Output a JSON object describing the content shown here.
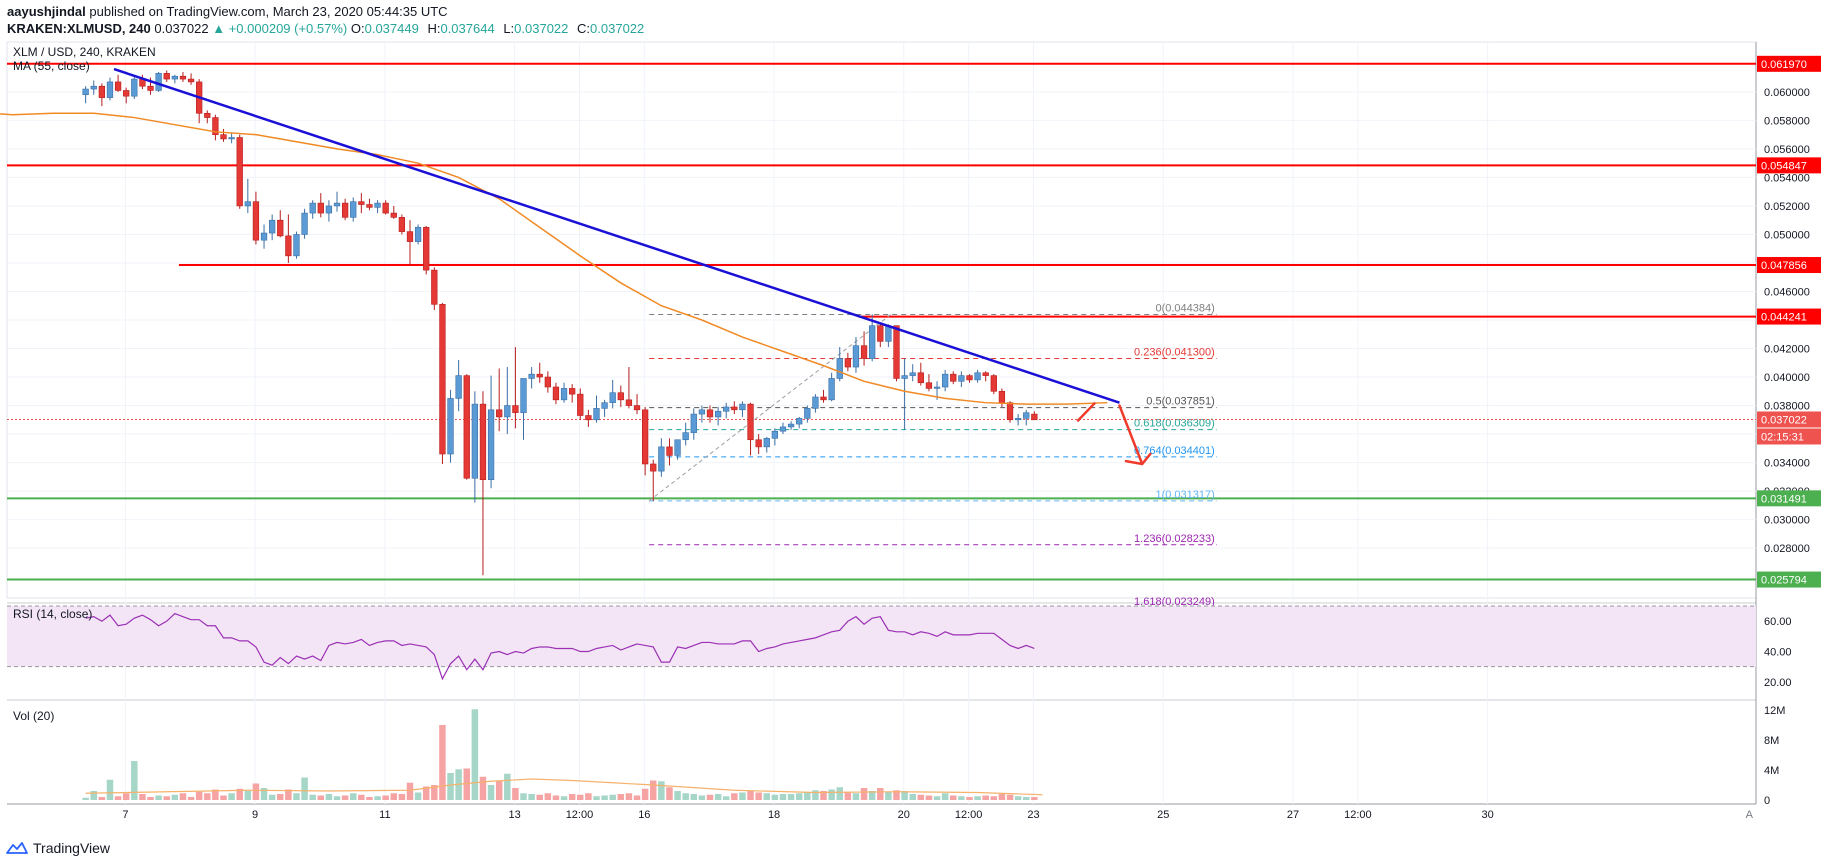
{
  "header": {
    "author": "aayushjindal",
    "published_text": "published on TradingView.com, March 23, 2020 05:44:35 UTC",
    "symbol": "KRAKEN:XLMUSD, 240",
    "last": "0.037022",
    "change": "▲ +0.000209 (+0.57%)",
    "o_label": "O:",
    "o": "0.037449",
    "h_label": "H:",
    "h": "0.037644",
    "l_label": "L:",
    "l": "0.037022",
    "c_label": "C:",
    "c": "0.037022"
  },
  "chart_data": {
    "type": "candlestick",
    "title": "XLM / USD, 240, KRAKEN",
    "ma_label": "MA (55, close)",
    "ylim": [
      0.0245,
      0.0635
    ],
    "y_ticks": [
      0.028,
      0.03,
      0.032,
      0.034,
      0.036,
      0.038,
      0.04,
      0.042,
      0.044,
      0.046,
      0.048,
      0.05,
      0.052,
      0.054,
      0.056,
      0.058,
      0.06
    ],
    "y_tick_labels": [
      "0.028000",
      "0.030000",
      "0.032000",
      "0.034000",
      "0.036000",
      "0.038000",
      "0.040000",
      "0.042000",
      "0.044000",
      "0.046000",
      "0.048000",
      "0.050000",
      "0.052000",
      "0.054000",
      "0.056000",
      "0.058000",
      "0.060000"
    ],
    "x_ticks": [
      {
        "label": "7",
        "t": 4.9
      },
      {
        "label": "9",
        "t": 20.9
      },
      {
        "label": "11",
        "t": 36.9
      },
      {
        "label": "13",
        "t": 52.9
      },
      {
        "label": "12:00",
        "t": 60.9
      },
      {
        "label": "16",
        "t": 68.9
      },
      {
        "label": "18",
        "t": 84.9
      },
      {
        "label": "20",
        "t": 100.9
      },
      {
        "label": "12:00",
        "t": 108.9
      },
      {
        "label": "23",
        "t": 116.9
      },
      {
        "label": "25",
        "t": 132.9
      },
      {
        "label": "27",
        "t": 148.9
      },
      {
        "label": "12:00",
        "t": 156.9
      },
      {
        "label": "30",
        "t": 172.9
      }
    ],
    "xlim": [
      -9.7,
      206
    ],
    "axis_corner": "A",
    "candles": [
      [
        0.0598,
        0.0604,
        0.0592,
        0.0602
      ],
      [
        0.0602,
        0.0608,
        0.0598,
        0.0604
      ],
      [
        0.0604,
        0.0606,
        0.059,
        0.0596
      ],
      [
        0.0596,
        0.061,
        0.0594,
        0.0607
      ],
      [
        0.0607,
        0.0612,
        0.06,
        0.0601
      ],
      [
        0.0601,
        0.0603,
        0.0592,
        0.0597
      ],
      [
        0.0597,
        0.0612,
        0.0595,
        0.0609
      ],
      [
        0.0609,
        0.0612,
        0.0602,
        0.0604
      ],
      [
        0.0604,
        0.061,
        0.0598,
        0.0601
      ],
      [
        0.0601,
        0.0614,
        0.06,
        0.0613
      ],
      [
        0.0613,
        0.0615,
        0.0607,
        0.0609
      ],
      [
        0.0609,
        0.0612,
        0.0606,
        0.0611
      ],
      [
        0.0611,
        0.0614,
        0.0607,
        0.0609
      ],
      [
        0.0609,
        0.0613,
        0.0605,
        0.0607
      ],
      [
        0.0607,
        0.0609,
        0.0578,
        0.0585
      ],
      [
        0.0585,
        0.0587,
        0.0578,
        0.0582
      ],
      [
        0.0582,
        0.0584,
        0.0566,
        0.057
      ],
      [
        0.057,
        0.0574,
        0.0565,
        0.0567
      ],
      [
        0.0567,
        0.0571,
        0.0564,
        0.0568
      ],
      [
        0.0568,
        0.057,
        0.0518,
        0.052
      ],
      [
        0.052,
        0.0539,
        0.0515,
        0.0523
      ],
      [
        0.0523,
        0.053,
        0.0493,
        0.0496
      ],
      [
        0.0496,
        0.0507,
        0.049,
        0.0501
      ],
      [
        0.0501,
        0.0514,
        0.0496,
        0.051
      ],
      [
        0.051,
        0.0517,
        0.0498,
        0.0499
      ],
      [
        0.0499,
        0.0514,
        0.048,
        0.0485
      ],
      [
        0.0485,
        0.0502,
        0.0483,
        0.05
      ],
      [
        0.05,
        0.0518,
        0.0497,
        0.0515
      ],
      [
        0.0515,
        0.0524,
        0.0511,
        0.0522
      ],
      [
        0.0522,
        0.0529,
        0.0512,
        0.0515
      ],
      [
        0.0515,
        0.0524,
        0.0509,
        0.052
      ],
      [
        0.052,
        0.053,
        0.0516,
        0.0522
      ],
      [
        0.0522,
        0.0525,
        0.051,
        0.0512
      ],
      [
        0.0512,
        0.0526,
        0.0509,
        0.0523
      ],
      [
        0.0523,
        0.0529,
        0.0515,
        0.0521
      ],
      [
        0.0521,
        0.0525,
        0.0517,
        0.0519
      ],
      [
        0.0519,
        0.0524,
        0.0515,
        0.0522
      ],
      [
        0.0522,
        0.0524,
        0.0514,
        0.0515
      ],
      [
        0.0515,
        0.052,
        0.0511,
        0.0512
      ],
      [
        0.0512,
        0.0514,
        0.05,
        0.0502
      ],
      [
        0.0502,
        0.051,
        0.0478,
        0.0495
      ],
      [
        0.0495,
        0.0507,
        0.0493,
        0.0505
      ],
      [
        0.0505,
        0.0506,
        0.0472,
        0.0475
      ],
      [
        0.0475,
        0.0477,
        0.0447,
        0.0451
      ],
      [
        0.0451,
        0.0452,
        0.0339,
        0.0346
      ],
      [
        0.0346,
        0.0391,
        0.034,
        0.0385
      ],
      [
        0.0385,
        0.0412,
        0.0376,
        0.0401
      ],
      [
        0.0401,
        0.0402,
        0.0328,
        0.0329
      ],
      [
        0.0329,
        0.039,
        0.0312,
        0.0381
      ],
      [
        0.0381,
        0.039,
        0.0261,
        0.0328
      ],
      [
        0.0328,
        0.0401,
        0.0322,
        0.0377
      ],
      [
        0.0377,
        0.0406,
        0.0362,
        0.0372
      ],
      [
        0.0372,
        0.0407,
        0.036,
        0.038
      ],
      [
        0.038,
        0.0421,
        0.0364,
        0.0375
      ],
      [
        0.0375,
        0.0398,
        0.0356,
        0.0399
      ],
      [
        0.0399,
        0.0407,
        0.0392,
        0.0402
      ],
      [
        0.0402,
        0.041,
        0.0396,
        0.04
      ],
      [
        0.04,
        0.0404,
        0.0389,
        0.0393
      ],
      [
        0.0393,
        0.0396,
        0.0381,
        0.0384
      ],
      [
        0.0384,
        0.0396,
        0.0382,
        0.0392
      ],
      [
        0.0392,
        0.0395,
        0.0382,
        0.0388
      ],
      [
        0.0388,
        0.0392,
        0.037,
        0.0373
      ],
      [
        0.0373,
        0.0377,
        0.0365,
        0.037
      ],
      [
        0.037,
        0.0387,
        0.0368,
        0.0378
      ],
      [
        0.0378,
        0.0384,
        0.0372,
        0.0382
      ],
      [
        0.0382,
        0.0398,
        0.0378,
        0.0389
      ],
      [
        0.0389,
        0.0394,
        0.0379,
        0.0384
      ],
      [
        0.0384,
        0.0407,
        0.0378,
        0.038
      ],
      [
        0.038,
        0.0388,
        0.0374,
        0.0377
      ],
      [
        0.0377,
        0.0379,
        0.0331,
        0.0339
      ],
      [
        0.0339,
        0.0342,
        0.0313,
        0.0334
      ],
      [
        0.0334,
        0.0357,
        0.033,
        0.0351
      ],
      [
        0.0351,
        0.0357,
        0.0338,
        0.0345
      ],
      [
        0.0345,
        0.0356,
        0.0342,
        0.0356
      ],
      [
        0.0356,
        0.0368,
        0.0352,
        0.0361
      ],
      [
        0.0361,
        0.0378,
        0.0356,
        0.0374
      ],
      [
        0.0374,
        0.038,
        0.0368,
        0.0377
      ],
      [
        0.0377,
        0.038,
        0.0368,
        0.0372
      ],
      [
        0.0372,
        0.0379,
        0.0366,
        0.0376
      ],
      [
        0.0376,
        0.0382,
        0.0371,
        0.0379
      ],
      [
        0.0379,
        0.0383,
        0.0374,
        0.0377
      ],
      [
        0.0377,
        0.0383,
        0.0372,
        0.0381
      ],
      [
        0.0381,
        0.0382,
        0.0345,
        0.0356
      ],
      [
        0.0356,
        0.036,
        0.0346,
        0.0351
      ],
      [
        0.0351,
        0.0358,
        0.0347,
        0.0357
      ],
      [
        0.0357,
        0.0364,
        0.0352,
        0.0362
      ],
      [
        0.0362,
        0.0368,
        0.036,
        0.0365
      ],
      [
        0.0365,
        0.0369,
        0.0363,
        0.0367
      ],
      [
        0.0367,
        0.0372,
        0.0364,
        0.0371
      ],
      [
        0.0371,
        0.038,
        0.0368,
        0.0378
      ],
      [
        0.0378,
        0.0388,
        0.0375,
        0.0386
      ],
      [
        0.0386,
        0.0391,
        0.0382,
        0.0384
      ],
      [
        0.0384,
        0.0403,
        0.0383,
        0.0399
      ],
      [
        0.0399,
        0.0421,
        0.0397,
        0.0413
      ],
      [
        0.0413,
        0.0417,
        0.0404,
        0.0407
      ],
      [
        0.0407,
        0.0428,
        0.0403,
        0.0422
      ],
      [
        0.0422,
        0.0432,
        0.0408,
        0.0413
      ],
      [
        0.0413,
        0.0444,
        0.0411,
        0.0436
      ],
      [
        0.0436,
        0.0437,
        0.0421,
        0.0425
      ],
      [
        0.0425,
        0.0437,
        0.0421,
        0.0436
      ],
      [
        0.0436,
        0.0436,
        0.0397,
        0.0399
      ],
      [
        0.0399,
        0.0413,
        0.0363,
        0.0401
      ],
      [
        0.0401,
        0.0409,
        0.0397,
        0.0403
      ],
      [
        0.0403,
        0.041,
        0.0394,
        0.0396
      ],
      [
        0.0396,
        0.0402,
        0.039,
        0.0392
      ],
      [
        0.0392,
        0.0397,
        0.0384,
        0.0393
      ],
      [
        0.0393,
        0.0405,
        0.039,
        0.0402
      ],
      [
        0.0402,
        0.0404,
        0.0395,
        0.0397
      ],
      [
        0.0397,
        0.0404,
        0.0393,
        0.0401
      ],
      [
        0.0401,
        0.0402,
        0.0396,
        0.0398
      ],
      [
        0.0398,
        0.0405,
        0.0396,
        0.0403
      ],
      [
        0.0403,
        0.0404,
        0.0397,
        0.0401
      ],
      [
        0.0401,
        0.0402,
        0.0388,
        0.039
      ],
      [
        0.039,
        0.0392,
        0.0379,
        0.0382
      ],
      [
        0.0382,
        0.0383,
        0.0368,
        0.037
      ],
      [
        0.037,
        0.0374,
        0.0366,
        0.0371
      ],
      [
        0.0371,
        0.0377,
        0.0366,
        0.0375
      ],
      [
        0.0374,
        0.0376,
        0.037,
        0.037
      ]
    ],
    "ma55": [
      [
        0,
        0.0586
      ],
      [
        5,
        0.0584
      ],
      [
        10,
        0.0585
      ],
      [
        15,
        0.0585
      ],
      [
        20,
        0.0582
      ],
      [
        25,
        0.0577
      ],
      [
        30,
        0.0572
      ],
      [
        35,
        0.057
      ],
      [
        40,
        0.0565
      ],
      [
        45,
        0.056
      ],
      [
        50,
        0.0556
      ],
      [
        55,
        0.055
      ],
      [
        60,
        0.054
      ],
      [
        65,
        0.0525
      ],
      [
        70,
        0.0505
      ],
      [
        75,
        0.0485
      ],
      [
        80,
        0.0466
      ],
      [
        85,
        0.045
      ],
      [
        90,
        0.044
      ],
      [
        95,
        0.0428
      ],
      [
        100,
        0.0418
      ],
      [
        105,
        0.0408
      ],
      [
        110,
        0.0397
      ],
      [
        115,
        0.039
      ],
      [
        120,
        0.0385
      ],
      [
        125,
        0.0382
      ],
      [
        130,
        0.0381
      ],
      [
        135,
        0.0381
      ],
      [
        140,
        0.0382
      ]
    ],
    "ma55_x_offset": -14,
    "horizontal_levels": [
      {
        "value": 0.06197,
        "label": "0.061970",
        "color": "#ff0000",
        "start_t": -9.7
      },
      {
        "value": 0.054847,
        "label": "0.054847",
        "color": "#ff0000",
        "start_t": -9.7
      },
      {
        "value": 0.047856,
        "label": "0.047856",
        "color": "#ff0000",
        "start_t": 11.5
      },
      {
        "value": 0.044241,
        "label": "0.044241",
        "color": "#ff0000",
        "start_t": 95.3
      },
      {
        "value": 0.031491,
        "label": "0.031491",
        "color": "#4caf50",
        "start_t": -9.7
      },
      {
        "value": 0.025794,
        "label": "0.025794",
        "color": "#4caf50",
        "start_t": -9.7
      }
    ],
    "last_price": {
      "value": 0.037022,
      "label": "0.037022",
      "countdown": "02:15:31",
      "color": "#ef5350"
    },
    "trendline": {
      "t1": 3.5,
      "v1": 0.0616,
      "t2": 127.5,
      "v2": 0.0382,
      "color": "#1a10d6"
    },
    "fibonacci": {
      "t_start": 69.5,
      "t_end": 139.5,
      "levels": [
        {
          "ratio": "0",
          "value": 0.044384,
          "label": "0(0.044384)",
          "color": "#808080"
        },
        {
          "ratio": "0.236",
          "value": 0.0413,
          "label": "0.236(0.041300)",
          "color": "#e53935"
        },
        {
          "ratio": "0.5",
          "value": 0.037851,
          "label": "0.5(0.037851)",
          "color": "#555555"
        },
        {
          "ratio": "0.618",
          "value": 0.036309,
          "label": "0.618(0.036309)",
          "color": "#26a69a"
        },
        {
          "ratio": "0.764",
          "value": 0.034401,
          "label": "0.764(0.034401)",
          "color": "#2196f3"
        },
        {
          "ratio": "1",
          "value": 0.031317,
          "label": "1(0.031317)",
          "color": "#64b5f6"
        },
        {
          "ratio": "1.236",
          "value": 0.028233,
          "label": "1.236(0.028233)",
          "color": "#9c27b0"
        }
      ],
      "partial_label": "1.618(0.023249)"
    },
    "rsi": {
      "label": "RSI (14, close)",
      "ylim": [
        10,
        72
      ],
      "band": [
        30,
        70
      ],
      "ticks": [
        20,
        40,
        60
      ],
      "tick_labels": [
        "20.00",
        "40.00",
        "60.00"
      ],
      "values": [
        62,
        63,
        60,
        64,
        57,
        58,
        62,
        64,
        61,
        57,
        60,
        65,
        63,
        61,
        61,
        57,
        57,
        49,
        49,
        47,
        47,
        43,
        33,
        31,
        36,
        32,
        37,
        35,
        37,
        34,
        44,
        46,
        45,
        46,
        48,
        44,
        46,
        47,
        47,
        44,
        45,
        44,
        43,
        38,
        22,
        32,
        37,
        28,
        35,
        28,
        39,
        40,
        38,
        40,
        39,
        42,
        43,
        43,
        42,
        42,
        42,
        40,
        40,
        42,
        43,
        44,
        41,
        43,
        45,
        44,
        43,
        33,
        33,
        43,
        42,
        44,
        46,
        46,
        45,
        45,
        45,
        47,
        47,
        40,
        42,
        43,
        45,
        46,
        47,
        48,
        49,
        51,
        53,
        54,
        60,
        63,
        58,
        62,
        63,
        54,
        53,
        53,
        51,
        53,
        52,
        50,
        53,
        51,
        51,
        51,
        52,
        52,
        52,
        48,
        44,
        42,
        44,
        42
      ]
    },
    "volume": {
      "label": "Vol (20)",
      "ylim": [
        0,
        12000000
      ],
      "ticks": [
        0,
        4000000,
        8000000,
        12000000
      ],
      "tick_labels": [
        "0",
        "4M",
        "8M",
        "12M"
      ],
      "values": [
        0.3,
        1.2,
        0.4,
        2.7,
        0.5,
        0.9,
        5.2,
        0.8,
        0.4,
        0.6,
        0.5,
        0.7,
        0.9,
        0.4,
        1.1,
        0.9,
        1.4,
        0.6,
        0.9,
        1.5,
        1.2,
        2.2,
        1.6,
        0.7,
        0.8,
        1.4,
        0.9,
        3.0,
        0.7,
        0.6,
        0.8,
        0.5,
        0.6,
        0.9,
        0.7,
        0.4,
        0.5,
        0.6,
        0.9,
        0.8,
        2.3,
        1.0,
        1.8,
        2.0,
        10.0,
        3.6,
        4.1,
        4.2,
        12.1,
        3.1,
        2.0,
        2.6,
        3.5,
        1.6,
        0.9,
        0.8,
        0.7,
        0.9,
        0.6,
        0.5,
        0.8,
        0.7,
        0.9,
        0.5,
        0.6,
        0.7,
        0.8,
        0.9,
        0.6,
        1.5,
        2.6,
        2.5,
        1.7,
        1.2,
        0.9,
        0.8,
        0.6,
        0.7,
        0.8,
        0.5,
        0.9,
        1.0,
        1.2,
        1.0,
        0.9,
        0.7,
        0.8,
        0.8,
        0.9,
        1.0,
        1.3,
        1.2,
        1.4,
        1.7,
        1.1,
        0.9,
        1.6,
        1.2,
        1.6,
        1.1,
        1.3,
        1.2,
        0.8,
        0.7,
        0.6,
        0.5,
        0.9,
        0.6,
        0.5,
        0.4,
        0.5,
        0.6,
        0.5,
        0.8,
        0.7,
        0.5,
        0.4,
        0.4
      ],
      "ma20": [
        [
          0,
          0.9
        ],
        [
          10,
          1.1
        ],
        [
          20,
          1.3
        ],
        [
          30,
          1.2
        ],
        [
          40,
          1.3
        ],
        [
          45,
          2.0
        ],
        [
          50,
          2.5
        ],
        [
          55,
          2.8
        ],
        [
          60,
          2.6
        ],
        [
          65,
          2.3
        ],
        [
          70,
          2.0
        ],
        [
          80,
          1.3
        ],
        [
          90,
          1.0
        ],
        [
          100,
          1.1
        ],
        [
          110,
          1.0
        ],
        [
          118,
          0.7
        ]
      ],
      "vol_unit_note": "millions"
    },
    "vol_scale": 1000000
  },
  "colors": {
    "up": "#5b9bd5",
    "down": "#e53935",
    "ma": "#f08a24",
    "rsi_line": "#9b30b5",
    "rsi_band": "#f3e5f5",
    "vol_up": "#a5d6c7",
    "vol_down": "#f5a3a3",
    "vol_ma": "#f6b26b"
  },
  "footer": {
    "brand": "TradingView"
  }
}
